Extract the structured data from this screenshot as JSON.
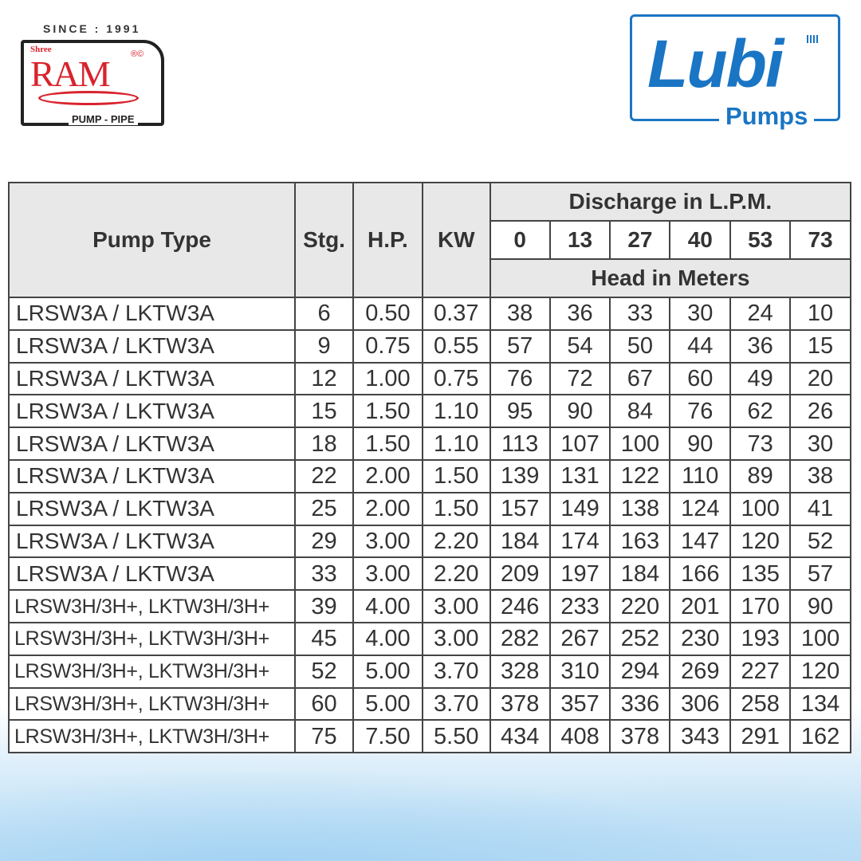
{
  "logos": {
    "ram": {
      "since": "SINCE : 1991",
      "shree": "Shree",
      "name": "RAM",
      "reg": "®©",
      "tagline": "PUMP - PIPE",
      "color": "#d9232d"
    },
    "lubi": {
      "name": "Lubi",
      "tagline": "Pumps",
      "color": "#1a75c4"
    }
  },
  "table": {
    "headers": {
      "pump_type": "Pump Type",
      "stages": "Stg.",
      "hp": "H.P.",
      "kw": "KW",
      "discharge": "Discharge in L.P.M.",
      "head": "Head in Meters",
      "flows": [
        "0",
        "13",
        "27",
        "40",
        "53",
        "73"
      ]
    },
    "rows": [
      {
        "type": "LRSW3A / LKTW3A",
        "stg": "6",
        "hp": "0.50",
        "kw": "0.37",
        "head": [
          "38",
          "36",
          "33",
          "30",
          "24",
          "10"
        ]
      },
      {
        "type": "LRSW3A / LKTW3A",
        "stg": "9",
        "hp": "0.75",
        "kw": "0.55",
        "head": [
          "57",
          "54",
          "50",
          "44",
          "36",
          "15"
        ]
      },
      {
        "type": "LRSW3A / LKTW3A",
        "stg": "12",
        "hp": "1.00",
        "kw": "0.75",
        "head": [
          "76",
          "72",
          "67",
          "60",
          "49",
          "20"
        ]
      },
      {
        "type": "LRSW3A / LKTW3A",
        "stg": "15",
        "hp": "1.50",
        "kw": "1.10",
        "head": [
          "95",
          "90",
          "84",
          "76",
          "62",
          "26"
        ]
      },
      {
        "type": "LRSW3A / LKTW3A",
        "stg": "18",
        "hp": "1.50",
        "kw": "1.10",
        "head": [
          "113",
          "107",
          "100",
          "90",
          "73",
          "30"
        ]
      },
      {
        "type": "LRSW3A / LKTW3A",
        "stg": "22",
        "hp": "2.00",
        "kw": "1.50",
        "head": [
          "139",
          "131",
          "122",
          "110",
          "89",
          "38"
        ]
      },
      {
        "type": "LRSW3A / LKTW3A",
        "stg": "25",
        "hp": "2.00",
        "kw": "1.50",
        "head": [
          "157",
          "149",
          "138",
          "124",
          "100",
          "41"
        ]
      },
      {
        "type": "LRSW3A / LKTW3A",
        "stg": "29",
        "hp": "3.00",
        "kw": "2.20",
        "head": [
          "184",
          "174",
          "163",
          "147",
          "120",
          "52"
        ]
      },
      {
        "type": "LRSW3A / LKTW3A",
        "stg": "33",
        "hp": "3.00",
        "kw": "2.20",
        "head": [
          "209",
          "197",
          "184",
          "166",
          "135",
          "57"
        ]
      },
      {
        "type": "LRSW3H/3H+, LKTW3H/3H+",
        "stg": "39",
        "hp": "4.00",
        "kw": "3.00",
        "head": [
          "246",
          "233",
          "220",
          "201",
          "170",
          "90"
        ]
      },
      {
        "type": "LRSW3H/3H+, LKTW3H/3H+",
        "stg": "45",
        "hp": "4.00",
        "kw": "3.00",
        "head": [
          "282",
          "267",
          "252",
          "230",
          "193",
          "100"
        ]
      },
      {
        "type": "LRSW3H/3H+, LKTW3H/3H+",
        "stg": "52",
        "hp": "5.00",
        "kw": "3.70",
        "head": [
          "328",
          "310",
          "294",
          "269",
          "227",
          "120"
        ]
      },
      {
        "type": "LRSW3H/3H+, LKTW3H/3H+",
        "stg": "60",
        "hp": "5.00",
        "kw": "3.70",
        "head": [
          "378",
          "357",
          "336",
          "306",
          "258",
          "134"
        ]
      },
      {
        "type": "LRSW3H/3H+, LKTW3H/3H+",
        "stg": "75",
        "hp": "7.50",
        "kw": "5.50",
        "head": [
          "434",
          "408",
          "378",
          "343",
          "291",
          "162"
        ]
      }
    ]
  }
}
